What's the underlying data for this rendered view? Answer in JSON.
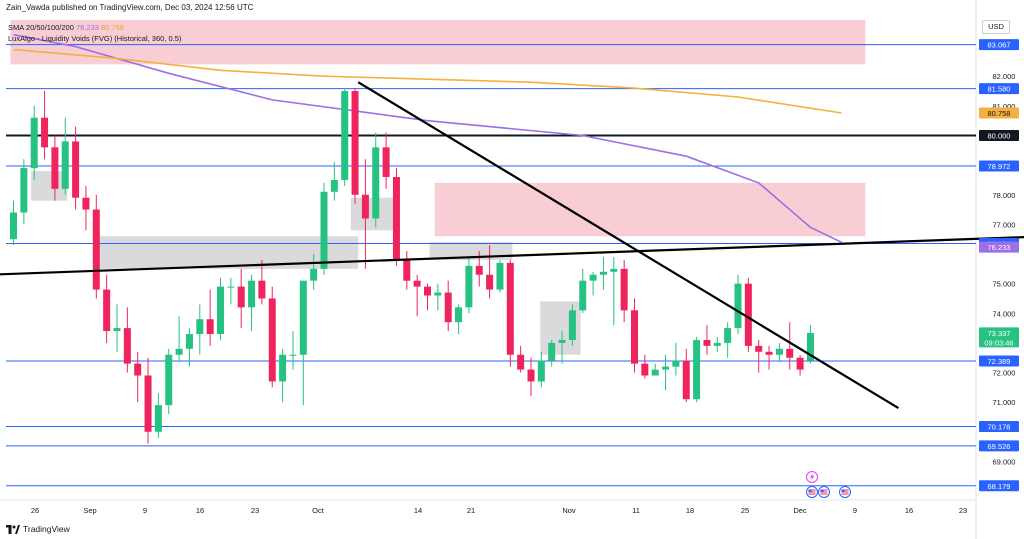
{
  "header": {
    "text": "Zain_Vawda published on TradingView.com, Dec 03, 2024 12:56 UTC"
  },
  "legend": {
    "sma_label": "SMA 20/50/100/200",
    "sma_value_1": "76.233",
    "sma_value_2": "80.758",
    "fvg_label": "LuxAlgo - Liquidity Voids (FVG) (Historical, 360, 0.5)"
  },
  "currency": "USD",
  "brand": "TradingView",
  "colors": {
    "up": "#26c281",
    "down": "#f0245c",
    "hline": "#2962ff",
    "sma_purple": "#9c6ee8",
    "sma_orange": "#f5b041",
    "bear_zone": "#f7c5cc",
    "gray_zone": "#d6d6d8"
  },
  "chart_data": {
    "type": "candlestick",
    "x_ticks": [
      "26",
      "Sep",
      "9",
      "16",
      "23",
      "Oct",
      "14",
      "21",
      "Nov",
      "11",
      "18",
      "25",
      "Dec",
      "9",
      "16",
      "23"
    ],
    "y_ticks": [
      "82.000",
      "81.000",
      "78.000",
      "77.000",
      "75.000",
      "74.000",
      "72.000",
      "71.000",
      "69.000"
    ],
    "ylim": [
      67.8,
      84.1
    ],
    "price_labels": [
      {
        "value": 83.067,
        "text": "83.067",
        "kind": "level"
      },
      {
        "value": 81.58,
        "text": "81.580",
        "kind": "level"
      },
      {
        "value": 80.758,
        "text": "80.758",
        "kind": "sma-orange"
      },
      {
        "value": 80.0,
        "text": "80.000",
        "kind": "level-black"
      },
      {
        "value": 78.972,
        "text": "78.972",
        "kind": "level"
      },
      {
        "value": 76.356,
        "text": "76.356",
        "kind": "level"
      },
      {
        "value": 76.233,
        "text": "76.233",
        "kind": "sma-purple"
      },
      {
        "value": 73.337,
        "text": "73.337",
        "kind": "last",
        "extra": "09:03:46"
      },
      {
        "value": 72.389,
        "text": "72.389",
        "kind": "level"
      },
      {
        "value": 70.178,
        "text": "70.178",
        "kind": "level"
      },
      {
        "value": 69.526,
        "text": "69.526",
        "kind": "level"
      },
      {
        "value": 68.179,
        "text": "68.179",
        "kind": "level"
      }
    ],
    "horizontal_levels": [
      83.067,
      81.58,
      78.972,
      76.356,
      72.389,
      70.178,
      69.526,
      68.179
    ],
    "black_level": 80.0,
    "candles": [
      {
        "o": 76.5,
        "h": 77.8,
        "l": 76.3,
        "c": 77.4
      },
      {
        "o": 77.4,
        "h": 79.2,
        "l": 77.0,
        "c": 78.9
      },
      {
        "o": 78.9,
        "h": 81.0,
        "l": 78.5,
        "c": 80.6
      },
      {
        "o": 80.6,
        "h": 81.5,
        "l": 79.2,
        "c": 79.6
      },
      {
        "o": 79.6,
        "h": 80.0,
        "l": 77.8,
        "c": 78.2
      },
      {
        "o": 78.2,
        "h": 80.6,
        "l": 78.0,
        "c": 79.8
      },
      {
        "o": 79.8,
        "h": 80.3,
        "l": 77.5,
        "c": 77.9
      },
      {
        "o": 77.9,
        "h": 78.3,
        "l": 76.8,
        "c": 77.5
      },
      {
        "o": 77.5,
        "h": 78.0,
        "l": 74.5,
        "c": 74.8
      },
      {
        "o": 74.8,
        "h": 75.3,
        "l": 73.0,
        "c": 73.4
      },
      {
        "o": 73.4,
        "h": 74.3,
        "l": 72.7,
        "c": 73.5
      },
      {
        "o": 73.5,
        "h": 74.2,
        "l": 72.0,
        "c": 72.3
      },
      {
        "o": 72.3,
        "h": 72.7,
        "l": 71.0,
        "c": 71.9
      },
      {
        "o": 71.9,
        "h": 72.5,
        "l": 69.6,
        "c": 70.0
      },
      {
        "o": 70.0,
        "h": 71.3,
        "l": 69.8,
        "c": 70.9
      },
      {
        "o": 70.9,
        "h": 72.8,
        "l": 70.6,
        "c": 72.6
      },
      {
        "o": 72.6,
        "h": 73.9,
        "l": 72.4,
        "c": 72.8
      },
      {
        "o": 72.8,
        "h": 73.5,
        "l": 72.2,
        "c": 73.3
      },
      {
        "o": 73.3,
        "h": 74.3,
        "l": 72.6,
        "c": 73.8
      },
      {
        "o": 73.8,
        "h": 74.8,
        "l": 72.9,
        "c": 73.3
      },
      {
        "o": 73.3,
        "h": 75.2,
        "l": 73.1,
        "c": 74.9
      },
      {
        "o": 74.9,
        "h": 75.2,
        "l": 74.3,
        "c": 74.9
      },
      {
        "o": 74.9,
        "h": 75.5,
        "l": 73.5,
        "c": 74.2
      },
      {
        "o": 74.2,
        "h": 75.3,
        "l": 73.4,
        "c": 75.1
      },
      {
        "o": 75.1,
        "h": 75.8,
        "l": 74.3,
        "c": 74.5
      },
      {
        "o": 74.5,
        "h": 74.9,
        "l": 71.5,
        "c": 71.7
      },
      {
        "o": 71.7,
        "h": 72.8,
        "l": 71.0,
        "c": 72.6
      },
      {
        "o": 72.6,
        "h": 73.4,
        "l": 72.1,
        "c": 72.6
      },
      {
        "o": 72.6,
        "h": 75.1,
        "l": 70.9,
        "c": 75.1
      },
      {
        "o": 75.1,
        "h": 76.0,
        "l": 74.8,
        "c": 75.5
      },
      {
        "o": 75.5,
        "h": 78.4,
        "l": 75.3,
        "c": 78.1
      },
      {
        "o": 78.1,
        "h": 79.1,
        "l": 77.8,
        "c": 78.5
      },
      {
        "o": 78.5,
        "h": 81.6,
        "l": 78.3,
        "c": 81.5
      },
      {
        "o": 81.5,
        "h": 81.6,
        "l": 77.7,
        "c": 78.0
      },
      {
        "o": 78.0,
        "h": 79.2,
        "l": 75.5,
        "c": 77.2
      },
      {
        "o": 77.2,
        "h": 80.1,
        "l": 76.9,
        "c": 79.6
      },
      {
        "o": 79.6,
        "h": 80.1,
        "l": 78.2,
        "c": 78.6
      },
      {
        "o": 78.6,
        "h": 78.9,
        "l": 75.6,
        "c": 75.8
      },
      {
        "o": 75.8,
        "h": 76.1,
        "l": 74.8,
        "c": 75.1
      },
      {
        "o": 75.1,
        "h": 75.3,
        "l": 73.9,
        "c": 74.9
      },
      {
        "o": 74.9,
        "h": 75.0,
        "l": 74.1,
        "c": 74.6
      },
      {
        "o": 74.6,
        "h": 75.0,
        "l": 74.1,
        "c": 74.7
      },
      {
        "o": 74.7,
        "h": 75.1,
        "l": 73.4,
        "c": 73.7
      },
      {
        "o": 73.7,
        "h": 74.3,
        "l": 73.3,
        "c": 74.2
      },
      {
        "o": 74.2,
        "h": 75.9,
        "l": 74.0,
        "c": 75.6
      },
      {
        "o": 75.6,
        "h": 76.1,
        "l": 74.9,
        "c": 75.3
      },
      {
        "o": 75.3,
        "h": 76.3,
        "l": 74.5,
        "c": 74.8
      },
      {
        "o": 74.8,
        "h": 75.8,
        "l": 74.7,
        "c": 75.7
      },
      {
        "o": 75.7,
        "h": 75.8,
        "l": 72.2,
        "c": 72.6
      },
      {
        "o": 72.6,
        "h": 72.9,
        "l": 72.0,
        "c": 72.1
      },
      {
        "o": 72.1,
        "h": 72.5,
        "l": 71.2,
        "c": 71.7
      },
      {
        "o": 71.7,
        "h": 72.7,
        "l": 71.5,
        "c": 72.4
      },
      {
        "o": 72.4,
        "h": 73.1,
        "l": 72.2,
        "c": 73.0
      },
      {
        "o": 73.0,
        "h": 73.4,
        "l": 72.3,
        "c": 73.1
      },
      {
        "o": 73.1,
        "h": 74.3,
        "l": 72.9,
        "c": 74.1
      },
      {
        "o": 74.1,
        "h": 75.5,
        "l": 74.0,
        "c": 75.1
      },
      {
        "o": 75.1,
        "h": 75.4,
        "l": 74.6,
        "c": 75.3
      },
      {
        "o": 75.3,
        "h": 75.9,
        "l": 74.8,
        "c": 75.4
      },
      {
        "o": 75.4,
        "h": 75.9,
        "l": 73.6,
        "c": 75.5
      },
      {
        "o": 75.5,
        "h": 75.8,
        "l": 73.7,
        "c": 74.1
      },
      {
        "o": 74.1,
        "h": 74.5,
        "l": 72.0,
        "c": 72.3
      },
      {
        "o": 72.3,
        "h": 72.6,
        "l": 71.8,
        "c": 71.9
      },
      {
        "o": 71.9,
        "h": 72.3,
        "l": 71.9,
        "c": 72.1
      },
      {
        "o": 72.1,
        "h": 72.6,
        "l": 71.4,
        "c": 72.2
      },
      {
        "o": 72.2,
        "h": 73.0,
        "l": 71.9,
        "c": 72.4
      },
      {
        "o": 72.4,
        "h": 72.8,
        "l": 71.0,
        "c": 71.1
      },
      {
        "o": 71.1,
        "h": 73.2,
        "l": 71.0,
        "c": 73.1
      },
      {
        "o": 73.1,
        "h": 73.6,
        "l": 72.6,
        "c": 72.9
      },
      {
        "o": 72.9,
        "h": 73.2,
        "l": 72.7,
        "c": 73.0
      },
      {
        "o": 73.0,
        "h": 73.7,
        "l": 72.5,
        "c": 73.5
      },
      {
        "o": 73.5,
        "h": 75.3,
        "l": 73.3,
        "c": 75.0
      },
      {
        "o": 75.0,
        "h": 75.2,
        "l": 72.7,
        "c": 72.9
      },
      {
        "o": 72.9,
        "h": 73.1,
        "l": 72.0,
        "c": 72.7
      },
      {
        "o": 72.7,
        "h": 72.9,
        "l": 72.1,
        "c": 72.6
      },
      {
        "o": 72.6,
        "h": 73.0,
        "l": 72.4,
        "c": 72.8
      },
      {
        "o": 72.8,
        "h": 73.7,
        "l": 72.1,
        "c": 72.5
      },
      {
        "o": 72.5,
        "h": 72.6,
        "l": 71.9,
        "c": 72.1
      },
      {
        "o": 72.4,
        "h": 73.6,
        "l": 72.3,
        "c": 73.337
      }
    ],
    "sma_purple": [
      [
        0,
        83.4
      ],
      [
        6,
        83.0
      ],
      [
        15,
        82.1
      ],
      [
        25,
        81.2
      ],
      [
        40,
        80.5
      ],
      [
        55,
        80.0
      ],
      [
        65,
        79.3
      ],
      [
        72,
        78.4
      ],
      [
        77,
        76.9
      ],
      [
        80,
        76.4
      ]
    ],
    "sma_orange": [
      [
        0,
        82.9
      ],
      [
        10,
        82.6
      ],
      [
        20,
        82.2
      ],
      [
        30,
        82.0
      ],
      [
        40,
        81.9
      ],
      [
        50,
        81.8
      ],
      [
        60,
        81.6
      ],
      [
        70,
        81.3
      ],
      [
        80,
        80.758
      ]
    ],
    "trendline_down": [
      [
        33.3,
        81.8
      ],
      [
        85.5,
        70.8
      ]
    ],
    "trendline_flat": [
      [
        -2.5,
        75.3
      ],
      [
        100,
        76.6
      ]
    ],
    "zones": [
      {
        "x0": -0.3,
        "x1": 82.3,
        "y0": 82.4,
        "y1": 83.9,
        "kind": "bear"
      },
      {
        "x0": 40.7,
        "x1": 82.3,
        "y0": 76.6,
        "y1": 78.4,
        "kind": "bear"
      },
      {
        "x0": 1.7,
        "x1": 5.2,
        "y0": 77.8,
        "y1": 78.8,
        "kind": "gray"
      },
      {
        "x0": 8.2,
        "x1": 33.3,
        "y0": 75.5,
        "y1": 76.6,
        "kind": "gray"
      },
      {
        "x0": 32.6,
        "x1": 37.2,
        "y0": 76.8,
        "y1": 77.9,
        "kind": "gray"
      },
      {
        "x0": 40.2,
        "x1": 48.2,
        "y0": 75.8,
        "y1": 76.4,
        "kind": "gray"
      },
      {
        "x0": 50.9,
        "x1": 54.8,
        "y0": 72.6,
        "y1": 74.4,
        "kind": "gray"
      }
    ]
  }
}
